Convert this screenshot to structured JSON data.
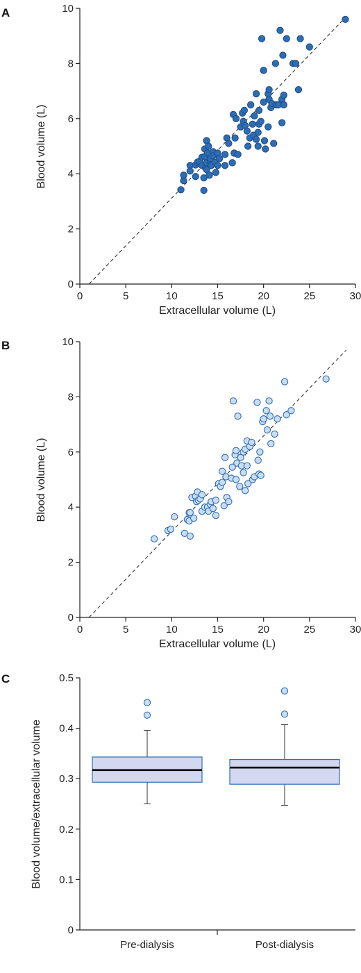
{
  "colors": {
    "panel_a_fill": "#2f6db3",
    "panel_a_stroke": "#1d4f8c",
    "panel_b_fill": "#c9ddf2",
    "panel_b_stroke": "#2f6db3",
    "box_fill": "#d3d8f0",
    "box_stroke": "#2f6db3",
    "median": "#000000",
    "outlier_fill": "#c9ddf2"
  },
  "chart_data": [
    {
      "panel": "A",
      "type": "scatter",
      "xlabel": "Extracellular volume (L)",
      "ylabel": "Blood volume (L)",
      "xlim": [
        0,
        30
      ],
      "ylim": [
        0,
        10
      ],
      "xticks": [
        "0",
        "5",
        "10",
        "15",
        "20",
        "25",
        "30"
      ],
      "yticks": [
        "0",
        "2",
        "4",
        "6",
        "8",
        "10"
      ],
      "reference_line": {
        "style": "dashed",
        "x1": 1.0,
        "y1": 0,
        "x2": 29,
        "y2": 9.7
      },
      "points": [
        [
          11.0,
          3.42
        ],
        [
          11.3,
          3.75
        ],
        [
          11.3,
          3.95
        ],
        [
          12.0,
          4.3
        ],
        [
          12.0,
          4.1
        ],
        [
          12.6,
          4.32
        ],
        [
          12.6,
          3.9
        ],
        [
          12.8,
          4.42
        ],
        [
          13.0,
          4.45
        ],
        [
          13.3,
          4.6
        ],
        [
          13.3,
          4.3
        ],
        [
          13.5,
          3.4
        ],
        [
          13.5,
          3.85
        ],
        [
          13.6,
          4.62
        ],
        [
          13.6,
          4.9
        ],
        [
          13.7,
          4.2
        ],
        [
          13.8,
          5.2
        ],
        [
          13.8,
          4.4
        ],
        [
          13.8,
          4.15
        ],
        [
          13.9,
          4.75
        ],
        [
          14.0,
          5.0
        ],
        [
          14.1,
          3.95
        ],
        [
          14.2,
          4.45
        ],
        [
          14.2,
          4.55
        ],
        [
          14.3,
          4.3
        ],
        [
          14.5,
          4.8
        ],
        [
          14.5,
          4.65
        ],
        [
          14.7,
          4.42
        ],
        [
          14.8,
          4.05
        ],
        [
          15.0,
          4.75
        ],
        [
          15.0,
          4.3
        ],
        [
          15.2,
          4.55
        ],
        [
          15.8,
          4.3
        ],
        [
          15.8,
          4.7
        ],
        [
          16.0,
          5.3
        ],
        [
          16.2,
          5.1
        ],
        [
          16.6,
          4.4
        ],
        [
          16.7,
          6.15
        ],
        [
          16.8,
          4.75
        ],
        [
          16.9,
          5.3
        ],
        [
          17.0,
          6.0
        ],
        [
          17.2,
          4.7
        ],
        [
          17.5,
          5.7
        ],
        [
          17.7,
          6.2
        ],
        [
          17.8,
          5.9
        ],
        [
          17.9,
          6.3
        ],
        [
          18.0,
          5.75
        ],
        [
          18.2,
          5.55
        ],
        [
          18.3,
          5.0
        ],
        [
          18.5,
          5.3
        ],
        [
          18.6,
          6.5
        ],
        [
          18.8,
          5.8
        ],
        [
          18.9,
          5.4
        ],
        [
          19.0,
          6.1
        ],
        [
          19.2,
          5.25
        ],
        [
          19.2,
          6.9
        ],
        [
          19.4,
          5.0
        ],
        [
          19.4,
          5.5
        ],
        [
          19.5,
          5.8
        ],
        [
          19.5,
          6.3
        ],
        [
          19.7,
          5.9
        ],
        [
          19.8,
          8.9
        ],
        [
          20.0,
          6.6
        ],
        [
          20.0,
          7.75
        ],
        [
          20.1,
          5.2
        ],
        [
          20.2,
          4.9
        ],
        [
          20.5,
          6.9
        ],
        [
          20.5,
          5.7
        ],
        [
          20.6,
          7.05
        ],
        [
          20.6,
          6.7
        ],
        [
          20.8,
          6.4
        ],
        [
          20.9,
          6.55
        ],
        [
          21.1,
          5.1
        ],
        [
          21.3,
          8.0
        ],
        [
          21.4,
          6.5
        ],
        [
          21.6,
          6.5
        ],
        [
          21.8,
          9.2
        ],
        [
          22.0,
          5.85
        ],
        [
          22.0,
          6.7
        ],
        [
          22.1,
          8.3
        ],
        [
          22.2,
          6.5
        ],
        [
          22.2,
          6.85
        ],
        [
          22.5,
          8.9
        ],
        [
          23.2,
          8.0
        ],
        [
          23.5,
          8.0
        ],
        [
          23.8,
          7.05
        ],
        [
          24.0,
          8.9
        ],
        [
          25.0,
          8.6
        ],
        [
          28.9,
          9.6
        ]
      ]
    },
    {
      "panel": "B",
      "type": "scatter",
      "xlabel": "Extracellular volume (L)",
      "ylabel": "Blood volume (L)",
      "xlim": [
        0,
        30
      ],
      "ylim": [
        0,
        10
      ],
      "xticks": [
        "0",
        "5",
        "10",
        "15",
        "20",
        "25",
        "30"
      ],
      "yticks": [
        "0",
        "2",
        "4",
        "6",
        "8",
        "10"
      ],
      "reference_line": {
        "style": "dashed",
        "x1": 1.0,
        "y1": 0,
        "x2": 29,
        "y2": 9.7
      },
      "points": [
        [
          8.1,
          2.85
        ],
        [
          9.6,
          3.15
        ],
        [
          9.9,
          3.2
        ],
        [
          10.3,
          3.65
        ],
        [
          11.4,
          3.05
        ],
        [
          11.7,
          3.55
        ],
        [
          11.9,
          3.5
        ],
        [
          11.9,
          3.8
        ],
        [
          12.0,
          2.95
        ],
        [
          12.0,
          3.8
        ],
        [
          12.2,
          4.35
        ],
        [
          12.4,
          3.6
        ],
        [
          12.6,
          4.4
        ],
        [
          12.7,
          4.2
        ],
        [
          12.8,
          4.55
        ],
        [
          12.9,
          4.25
        ],
        [
          13.1,
          4.3
        ],
        [
          13.3,
          3.85
        ],
        [
          13.3,
          4.45
        ],
        [
          13.6,
          4.0
        ],
        [
          13.9,
          4.0
        ],
        [
          14.0,
          3.85
        ],
        [
          14.2,
          4.1
        ],
        [
          14.3,
          4.2
        ],
        [
          14.5,
          3.95
        ],
        [
          14.8,
          3.7
        ],
        [
          14.8,
          4.25
        ],
        [
          15.1,
          4.85
        ],
        [
          15.3,
          4.75
        ],
        [
          15.5,
          4.9
        ],
        [
          15.5,
          5.3
        ],
        [
          15.7,
          4.05
        ],
        [
          15.8,
          5.8
        ],
        [
          15.9,
          5.1
        ],
        [
          16.0,
          4.35
        ],
        [
          16.2,
          4.2
        ],
        [
          16.5,
          5.05
        ],
        [
          16.6,
          5.45
        ],
        [
          16.7,
          7.85
        ],
        [
          16.9,
          5.9
        ],
        [
          17.0,
          6.05
        ],
        [
          17.0,
          5.0
        ],
        [
          17.1,
          5.6
        ],
        [
          17.2,
          7.3
        ],
        [
          17.4,
          4.75
        ],
        [
          17.5,
          5.8
        ],
        [
          17.6,
          5.5
        ],
        [
          17.8,
          5.25
        ],
        [
          17.8,
          6.0
        ],
        [
          18.0,
          4.6
        ],
        [
          18.0,
          6.1
        ],
        [
          18.2,
          5.5
        ],
        [
          18.2,
          6.4
        ],
        [
          18.3,
          4.85
        ],
        [
          18.5,
          6.2
        ],
        [
          18.7,
          6.35
        ],
        [
          18.8,
          5.0
        ],
        [
          19.0,
          5.1
        ],
        [
          19.3,
          7.8
        ],
        [
          19.4,
          5.7
        ],
        [
          19.5,
          5.2
        ],
        [
          19.6,
          6.0
        ],
        [
          19.7,
          5.15
        ],
        [
          19.9,
          7.1
        ],
        [
          20.0,
          7.2
        ],
        [
          20.3,
          7.5
        ],
        [
          20.4,
          6.8
        ],
        [
          20.6,
          7.85
        ],
        [
          20.7,
          7.3
        ],
        [
          20.8,
          6.3
        ],
        [
          21.2,
          6.65
        ],
        [
          21.5,
          7.2
        ],
        [
          22.3,
          8.55
        ],
        [
          22.5,
          7.35
        ],
        [
          23.0,
          7.5
        ],
        [
          26.8,
          8.65
        ]
      ]
    },
    {
      "panel": "C",
      "type": "box",
      "ylabel": "Blood volume/extracellular volume",
      "ylim": [
        0,
        0.5
      ],
      "yticks": [
        "0",
        "0.1",
        "0.2",
        "0.3",
        "0.4",
        "0.5"
      ],
      "categories": [
        "Pre-dialysis",
        "Post-dialysis"
      ],
      "boxes": [
        {
          "min": 0.25,
          "q1": 0.293,
          "median": 0.317,
          "q3": 0.343,
          "max": 0.396,
          "outliers": [
            0.426,
            0.451
          ]
        },
        {
          "min": 0.247,
          "q1": 0.289,
          "median": 0.322,
          "q3": 0.338,
          "max": 0.407,
          "outliers": [
            0.428,
            0.474
          ]
        }
      ]
    }
  ]
}
